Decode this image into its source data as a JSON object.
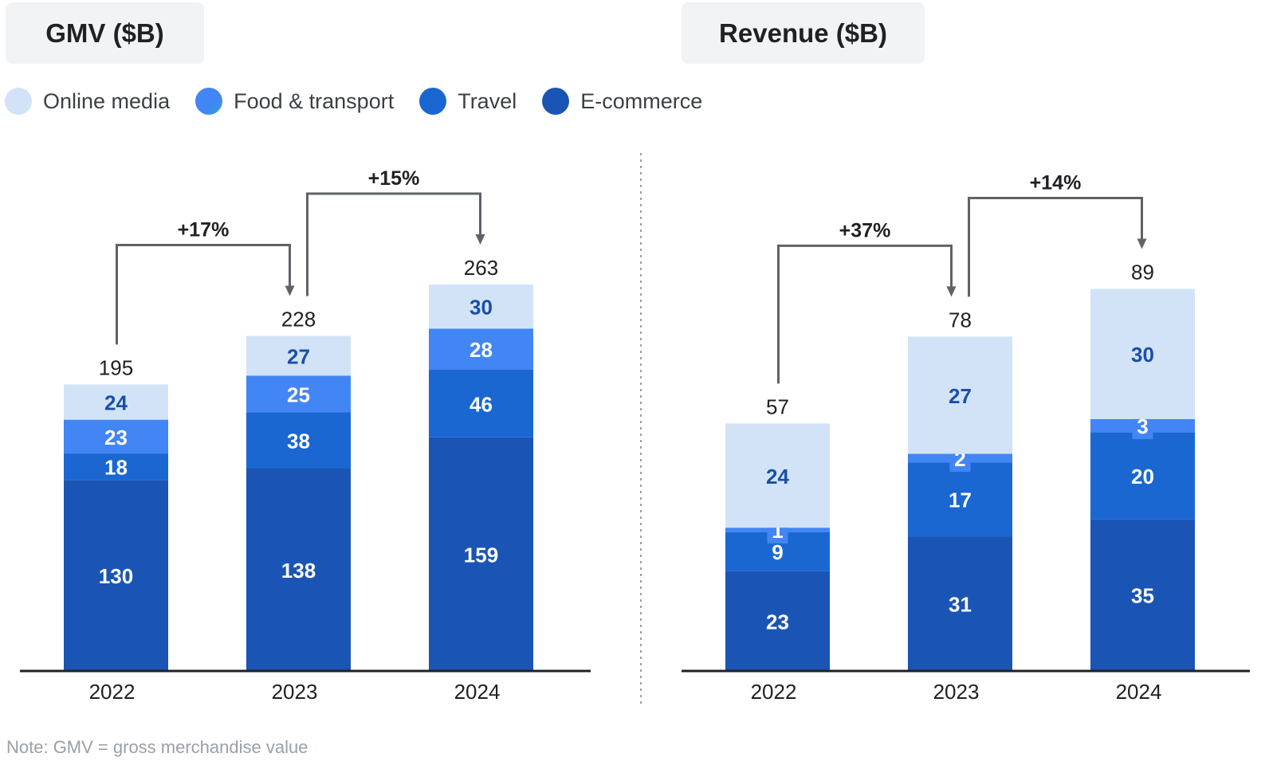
{
  "legend": [
    {
      "name": "Online media",
      "color": "#d2e3f7"
    },
    {
      "name": "Food & transport",
      "color": "#4285f4"
    },
    {
      "name": "Travel",
      "color": "#1a67d2"
    },
    {
      "name": "E-commerce",
      "color": "#1a55b5"
    }
  ],
  "note": "Note: GMV = gross merchandise value",
  "chart_data": [
    {
      "type": "bar",
      "stacked": true,
      "title": "GMV ($B)",
      "categories": [
        "2022",
        "2023",
        "2024"
      ],
      "series": [
        {
          "name": "E-commerce",
          "values": [
            130,
            138,
            159
          ],
          "color": "#1a55b5"
        },
        {
          "name": "Travel",
          "values": [
            18,
            38,
            46
          ],
          "color": "#1a67d2"
        },
        {
          "name": "Food & transport",
          "values": [
            23,
            25,
            28
          ],
          "color": "#4285f4"
        },
        {
          "name": "Online media",
          "values": [
            24,
            27,
            30
          ],
          "color": "#d2e3f7"
        }
      ],
      "totals": [
        195,
        228,
        263
      ],
      "growth": [
        {
          "from": "2022",
          "to": "2023",
          "label": "+17%"
        },
        {
          "from": "2023",
          "to": "2024",
          "label": "+15%"
        }
      ],
      "ylim": [
        0,
        263
      ]
    },
    {
      "type": "bar",
      "stacked": true,
      "title": "Revenue ($B)",
      "categories": [
        "2022",
        "2023",
        "2024"
      ],
      "series": [
        {
          "name": "E-commerce",
          "values": [
            23,
            31,
            35
          ],
          "color": "#1a55b5"
        },
        {
          "name": "Travel",
          "values": [
            9,
            17,
            20
          ],
          "color": "#1a67d2"
        },
        {
          "name": "Food & transport",
          "values": [
            1,
            2,
            3
          ],
          "color": "#4285f4"
        },
        {
          "name": "Online media",
          "values": [
            24,
            27,
            30
          ],
          "color": "#d2e3f7"
        }
      ],
      "totals": [
        57,
        78,
        89
      ],
      "growth": [
        {
          "from": "2022",
          "to": "2023",
          "label": "+37%"
        },
        {
          "from": "2023",
          "to": "2024",
          "label": "+14%"
        }
      ],
      "ylim": [
        0,
        89
      ]
    }
  ]
}
